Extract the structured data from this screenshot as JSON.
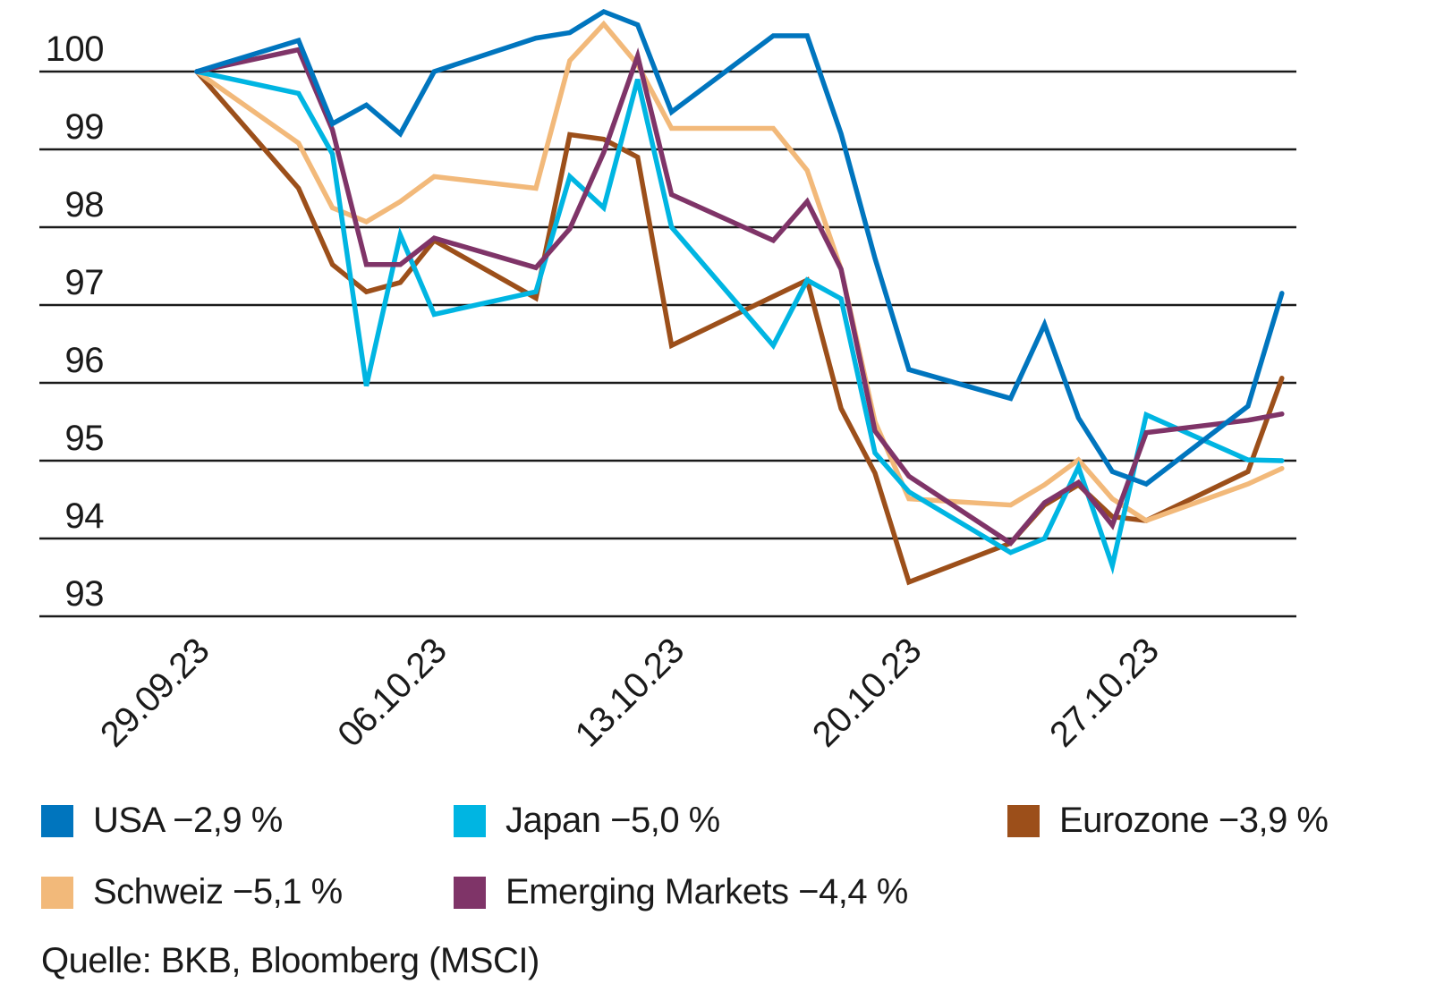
{
  "chart_data": {
    "type": "line",
    "title": "",
    "xlabel": "",
    "ylabel": "",
    "ylim": [
      93,
      100
    ],
    "yticks": [
      "100",
      "99",
      "98",
      "97",
      "96",
      "95",
      "94",
      "93"
    ],
    "ytick_values": [
      100,
      99,
      98,
      97,
      96,
      95,
      94,
      93
    ],
    "grid": true,
    "legend_position": "bottom",
    "xtick_labels": [
      "29.09.23",
      "06.10.23",
      "13.10.23",
      "20.10.23",
      "27.10.23"
    ],
    "xtick_days": [
      0,
      7,
      14,
      21,
      28
    ],
    "x": [
      "29.09.23",
      "02.10.23",
      "03.10.23",
      "04.10.23",
      "05.10.23",
      "06.10.23",
      "09.10.23",
      "10.10.23",
      "11.10.23",
      "12.10.23",
      "13.10.23",
      "16.10.23",
      "17.10.23",
      "18.10.23",
      "19.10.23",
      "20.10.23",
      "23.10.23",
      "24.10.23",
      "25.10.23",
      "26.10.23",
      "27.10.23",
      "30.10.23",
      "31.10.23"
    ],
    "x_days": [
      0,
      3,
      4,
      5,
      6,
      7,
      10,
      11,
      12,
      13,
      14,
      17,
      18,
      19,
      20,
      21,
      24,
      25,
      26,
      27,
      28,
      31,
      32
    ],
    "series": [
      {
        "name": "USA",
        "legend": "USA −2,9 %",
        "color": "#0075BE",
        "values": [
          100,
          100.4,
          99.33,
          99.57,
          99.2,
          100.0,
          100.43,
          100.5,
          100.77,
          100.6,
          99.48,
          100.46,
          100.46,
          99.2,
          97.6,
          96.17,
          95.8,
          96.75,
          95.55,
          94.86,
          94.7,
          95.7,
          97.15
        ]
      },
      {
        "name": "Japan",
        "legend": "Japan −5,0 %",
        "color": "#00B5E2",
        "values": [
          100,
          99.72,
          98.94,
          95.96,
          97.9,
          96.88,
          97.17,
          98.65,
          98.25,
          99.9,
          98.0,
          96.48,
          97.32,
          97.08,
          95.1,
          94.6,
          93.82,
          94.0,
          94.92,
          93.65,
          95.59,
          95.01,
          95.0
        ]
      },
      {
        "name": "Eurozone",
        "legend": "Eurozone −3,9 %",
        "color": "#9C4F1A",
        "values": [
          100,
          98.5,
          97.52,
          97.17,
          97.29,
          97.83,
          97.09,
          99.19,
          99.13,
          98.9,
          96.48,
          97.11,
          97.32,
          95.67,
          94.84,
          93.44,
          93.94,
          94.43,
          94.69,
          94.28,
          94.23,
          94.86,
          96.06
        ]
      },
      {
        "name": "Schweiz",
        "legend": "Schweiz −5,1 %",
        "color": "#F2B97A",
        "values": [
          100,
          99.08,
          98.25,
          98.07,
          98.33,
          98.65,
          98.5,
          100.14,
          100.61,
          100.09,
          99.27,
          99.27,
          98.73,
          97.46,
          95.5,
          94.51,
          94.43,
          94.69,
          95.01,
          94.51,
          94.23,
          94.7,
          94.9
        ]
      },
      {
        "name": "Emerging Markets",
        "legend": "Emerging Markets −4,4 %",
        "color": "#7F3468",
        "values": [
          100,
          100.28,
          99.25,
          97.52,
          97.52,
          97.86,
          97.48,
          97.98,
          98.96,
          100.2,
          98.42,
          97.83,
          98.33,
          97.46,
          95.38,
          94.8,
          93.94,
          94.46,
          94.72,
          94.17,
          95.36,
          95.52,
          95.6
        ]
      }
    ],
    "source": "Quelle: BKB, Bloomberg (MSCI)"
  },
  "legend": {
    "items": [
      {
        "label": "USA −2,9 %",
        "color": "#0075BE"
      },
      {
        "label": "Japan −5,0 %",
        "color": "#00B5E2"
      },
      {
        "label": "Eurozone −3,9 %",
        "color": "#9C4F1A"
      },
      {
        "label": "Schweiz −5,1 %",
        "color": "#F2B97A"
      },
      {
        "label": "Emerging Markets −4,4 %",
        "color": "#7F3468"
      }
    ]
  },
  "source": "Quelle: BKB, Bloomberg (MSCI)"
}
